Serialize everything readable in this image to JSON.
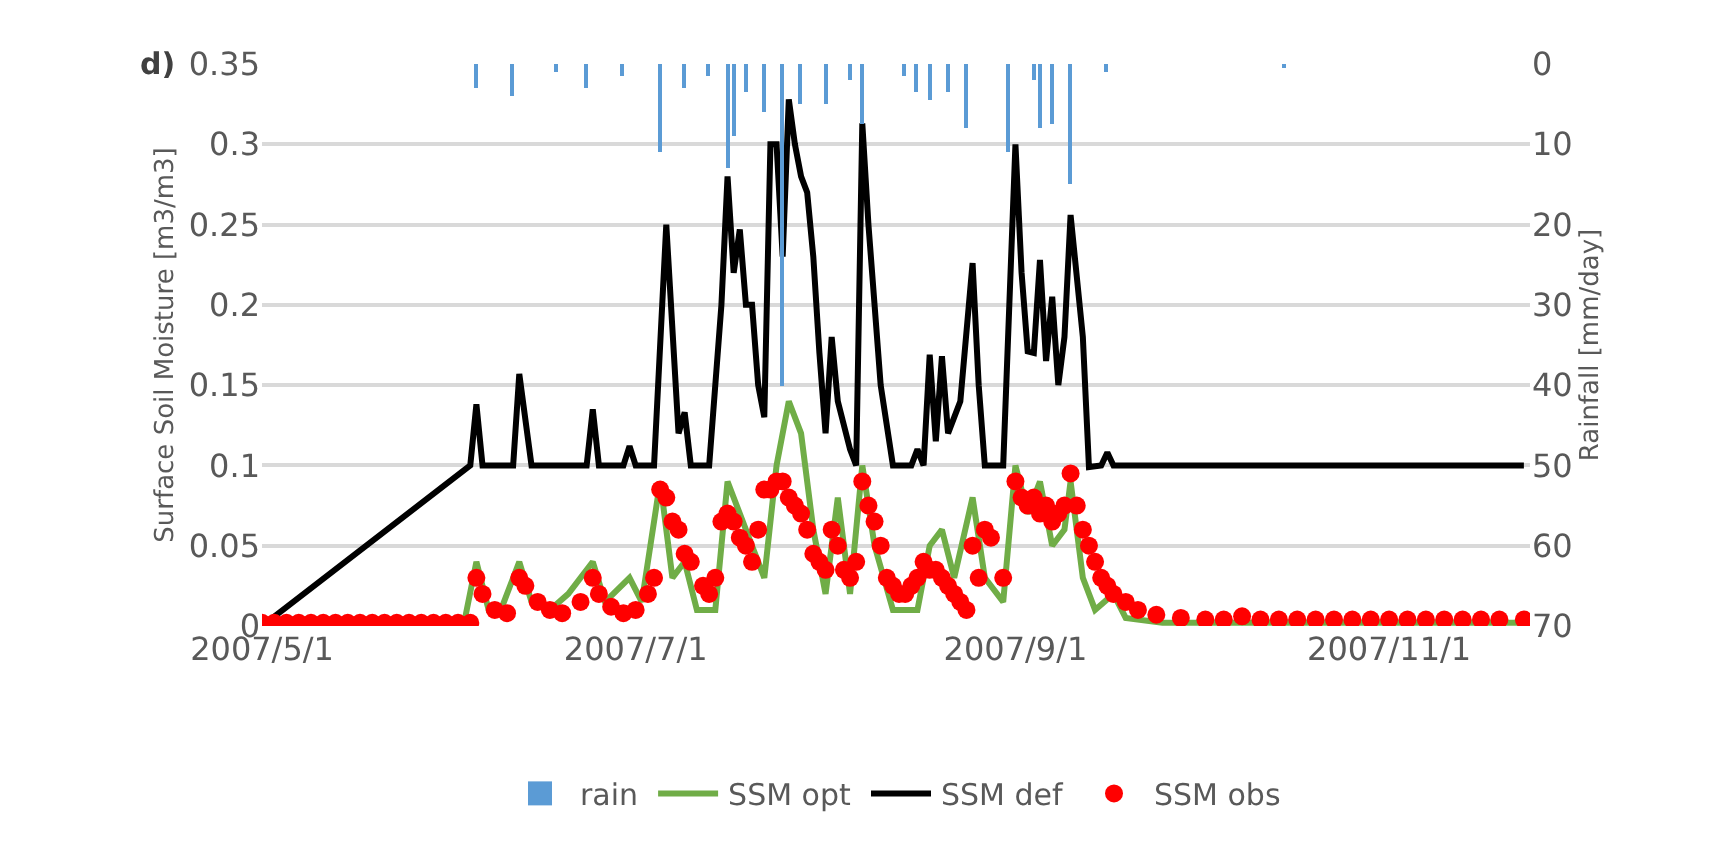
{
  "chart_data": {
    "type": "line",
    "ylabel": "Surface Soil Moisture [m3/m3]",
    "y2label": "Rainfall [mm/day]",
    "annotations": [
      "d)"
    ],
    "xlim": [
      "2007-05-01",
      "2007-11-24"
    ],
    "xticks": [
      {
        "value": "2007-05-01",
        "label": "2007/5/1"
      },
      {
        "value": "2007-07-01",
        "label": "2007/7/1"
      },
      {
        "value": "2007-09-01",
        "label": "2007/9/1"
      },
      {
        "value": "2007-11-01",
        "label": "2007/11/1"
      }
    ],
    "ylim": [
      0,
      0.35
    ],
    "yticks": [
      0,
      0.05,
      0.1,
      0.15,
      0.2,
      0.25,
      0.3,
      0.35
    ],
    "y2lim": [
      70,
      0
    ],
    "y2ticks": [
      0,
      10,
      20,
      30,
      40,
      50,
      60,
      70
    ],
    "grid": "y",
    "legend": "bottom",
    "series": [
      {
        "name": "rain",
        "type": "bar",
        "axis": "y2",
        "color": "#5b9bd5",
        "x": [
          "2007-06-05",
          "2007-06-11",
          "2007-06-18",
          "2007-06-23",
          "2007-06-29",
          "2007-07-05",
          "2007-07-09",
          "2007-07-13",
          "2007-07-16",
          "2007-07-17",
          "2007-07-19",
          "2007-07-22",
          "2007-07-25",
          "2007-07-28",
          "2007-08-01",
          "2007-08-05",
          "2007-08-07",
          "2007-08-14",
          "2007-08-16",
          "2007-08-18",
          "2007-08-21",
          "2007-08-24",
          "2007-08-31",
          "2007-09-04",
          "2007-09-05",
          "2007-09-07",
          "2007-09-10",
          "2007-09-16",
          "2007-10-15"
        ],
        "values": [
          3,
          4,
          1,
          3,
          1.5,
          11,
          3,
          1.5,
          13,
          9,
          3.5,
          6,
          40,
          5,
          5,
          2,
          7.5,
          1.5,
          3.5,
          4.5,
          3.5,
          8,
          11,
          2,
          8,
          7.5,
          15,
          1,
          0.5
        ]
      },
      {
        "name": "SSM opt",
        "marker": "none",
        "color": "#70ad47",
        "x": [
          "2007-05-01",
          "2007-06-03",
          "2007-06-05",
          "2007-06-07",
          "2007-06-09",
          "2007-06-12",
          "2007-06-14",
          "2007-06-17",
          "2007-06-20",
          "2007-06-24",
          "2007-06-26",
          "2007-06-30",
          "2007-07-02",
          "2007-07-05",
          "2007-07-07",
          "2007-07-09",
          "2007-07-11",
          "2007-07-14",
          "2007-07-16",
          "2007-07-18",
          "2007-07-20",
          "2007-07-22",
          "2007-07-24",
          "2007-07-26",
          "2007-07-28",
          "2007-07-30",
          "2007-08-01",
          "2007-08-03",
          "2007-08-05",
          "2007-08-07",
          "2007-08-09",
          "2007-08-12",
          "2007-08-16",
          "2007-08-18",
          "2007-08-20",
          "2007-08-22",
          "2007-08-25",
          "2007-08-27",
          "2007-08-30",
          "2007-09-01",
          "2007-09-03",
          "2007-09-05",
          "2007-09-07",
          "2007-09-09",
          "2007-09-10",
          "2007-09-12",
          "2007-09-14",
          "2007-09-17",
          "2007-09-19",
          "2007-09-25",
          "2007-11-23"
        ],
        "values": [
          0.002,
          0.002,
          0.04,
          0.01,
          0.01,
          0.04,
          0.015,
          0.01,
          0.02,
          0.04,
          0.015,
          0.03,
          0.015,
          0.09,
          0.03,
          0.04,
          0.01,
          0.01,
          0.09,
          0.07,
          0.05,
          0.03,
          0.1,
          0.14,
          0.12,
          0.06,
          0.02,
          0.08,
          0.02,
          0.1,
          0.05,
          0.01,
          0.01,
          0.05,
          0.06,
          0.03,
          0.08,
          0.03,
          0.015,
          0.1,
          0.07,
          0.09,
          0.05,
          0.06,
          0.09,
          0.03,
          0.01,
          0.02,
          0.005,
          0.002,
          0.002
        ]
      },
      {
        "name": "SSM def",
        "marker": "none",
        "color": "#000000",
        "x": [
          "2007-05-01",
          "2007-06-04",
          "2007-06-05",
          "2007-06-06",
          "2007-06-11",
          "2007-06-12",
          "2007-06-14",
          "2007-06-23",
          "2007-06-24",
          "2007-06-25",
          "2007-06-29",
          "2007-06-30",
          "2007-07-01",
          "2007-07-04",
          "2007-07-06",
          "2007-07-08",
          "2007-07-09",
          "2007-07-10",
          "2007-07-13",
          "2007-07-15",
          "2007-07-16",
          "2007-07-17",
          "2007-07-18",
          "2007-07-19",
          "2007-07-20",
          "2007-07-21",
          "2007-07-22",
          "2007-07-23",
          "2007-07-24",
          "2007-07-25",
          "2007-07-26",
          "2007-07-27",
          "2007-07-28",
          "2007-07-29",
          "2007-07-30",
          "2007-07-31",
          "2007-08-01",
          "2007-08-02",
          "2007-08-03",
          "2007-08-05",
          "2007-08-06",
          "2007-08-07",
          "2007-08-08",
          "2007-08-10",
          "2007-08-12",
          "2007-08-15",
          "2007-08-16",
          "2007-08-17",
          "2007-08-18",
          "2007-08-19",
          "2007-08-20",
          "2007-08-21",
          "2007-08-23",
          "2007-08-25",
          "2007-08-26",
          "2007-08-27",
          "2007-08-30",
          "2007-09-01",
          "2007-09-02",
          "2007-09-03",
          "2007-09-04",
          "2007-09-05",
          "2007-09-06",
          "2007-09-07",
          "2007-09-08",
          "2007-09-09",
          "2007-09-10",
          "2007-09-12",
          "2007-09-13",
          "2007-09-15",
          "2007-09-16",
          "2007-09-17",
          "2007-11-23"
        ],
        "values": [
          0,
          0.1,
          0.138,
          0.1,
          0.1,
          0.157,
          0.1,
          0.1,
          0.135,
          0.1,
          0.1,
          0.112,
          0.1,
          0.1,
          0.25,
          0.12,
          0.133,
          0.1,
          0.1,
          0.2,
          0.28,
          0.22,
          0.247,
          0.2,
          0.2,
          0.15,
          0.13,
          0.3,
          0.3,
          0.23,
          0.328,
          0.3,
          0.28,
          0.27,
          0.23,
          0.17,
          0.12,
          0.18,
          0.14,
          0.11,
          0.1,
          0.313,
          0.25,
          0.15,
          0.1,
          0.1,
          0.11,
          0.1,
          0.169,
          0.115,
          0.168,
          0.12,
          0.14,
          0.226,
          0.15,
          0.1,
          0.1,
          0.3,
          0.22,
          0.171,
          0.17,
          0.228,
          0.165,
          0.205,
          0.15,
          0.18,
          0.256,
          0.18,
          0.099,
          0.1,
          0.108,
          0.1,
          0.1
        ]
      },
      {
        "name": "SSM obs",
        "type": "scatter",
        "marker": "circle",
        "color": "#ff0000",
        "x": [
          "2007-05-01",
          "2007-05-03",
          "2007-05-05",
          "2007-05-07",
          "2007-05-09",
          "2007-05-11",
          "2007-05-13",
          "2007-05-15",
          "2007-05-17",
          "2007-05-19",
          "2007-05-21",
          "2007-05-23",
          "2007-05-25",
          "2007-05-27",
          "2007-05-29",
          "2007-05-31",
          "2007-06-02",
          "2007-06-04",
          "2007-06-05",
          "2007-06-06",
          "2007-06-08",
          "2007-06-10",
          "2007-06-12",
          "2007-06-13",
          "2007-06-15",
          "2007-06-17",
          "2007-06-19",
          "2007-06-22",
          "2007-06-24",
          "2007-06-25",
          "2007-06-27",
          "2007-06-29",
          "2007-07-01",
          "2007-07-03",
          "2007-07-04",
          "2007-07-05",
          "2007-07-06",
          "2007-07-07",
          "2007-07-08",
          "2007-07-09",
          "2007-07-10",
          "2007-07-12",
          "2007-07-13",
          "2007-07-14",
          "2007-07-15",
          "2007-07-16",
          "2007-07-17",
          "2007-07-18",
          "2007-07-19",
          "2007-07-20",
          "2007-07-21",
          "2007-07-22",
          "2007-07-23",
          "2007-07-24",
          "2007-07-25",
          "2007-07-26",
          "2007-07-27",
          "2007-07-28",
          "2007-07-29",
          "2007-07-30",
          "2007-07-31",
          "2007-08-01",
          "2007-08-02",
          "2007-08-03",
          "2007-08-04",
          "2007-08-05",
          "2007-08-06",
          "2007-08-07",
          "2007-08-08",
          "2007-08-09",
          "2007-08-10",
          "2007-08-11",
          "2007-08-12",
          "2007-08-13",
          "2007-08-14",
          "2007-08-15",
          "2007-08-16",
          "2007-08-17",
          "2007-08-18",
          "2007-08-19",
          "2007-08-20",
          "2007-08-21",
          "2007-08-22",
          "2007-08-23",
          "2007-08-24",
          "2007-08-25",
          "2007-08-26",
          "2007-08-27",
          "2007-08-28",
          "2007-08-30",
          "2007-09-01",
          "2007-09-02",
          "2007-09-03",
          "2007-09-04",
          "2007-09-05",
          "2007-09-06",
          "2007-09-07",
          "2007-09-08",
          "2007-09-09",
          "2007-09-10",
          "2007-09-11",
          "2007-09-12",
          "2007-09-13",
          "2007-09-14",
          "2007-09-15",
          "2007-09-16",
          "2007-09-17",
          "2007-09-19",
          "2007-09-21",
          "2007-09-24",
          "2007-09-28",
          "2007-10-02",
          "2007-10-05",
          "2007-10-08",
          "2007-10-11",
          "2007-10-14",
          "2007-10-17",
          "2007-10-20",
          "2007-10-23",
          "2007-10-26",
          "2007-10-29",
          "2007-11-01",
          "2007-11-04",
          "2007-11-07",
          "2007-11-10",
          "2007-11-13",
          "2007-11-16",
          "2007-11-19",
          "2007-11-23"
        ],
        "values": [
          0.002,
          0.002,
          0.002,
          0.002,
          0.002,
          0.002,
          0.002,
          0.002,
          0.002,
          0.002,
          0.002,
          0.002,
          0.002,
          0.002,
          0.002,
          0.002,
          0.002,
          0.002,
          0.03,
          0.02,
          0.01,
          0.008,
          0.03,
          0.025,
          0.015,
          0.01,
          0.008,
          0.015,
          0.03,
          0.02,
          0.012,
          0.008,
          0.01,
          0.02,
          0.03,
          0.085,
          0.08,
          0.065,
          0.06,
          0.045,
          0.04,
          0.025,
          0.02,
          0.03,
          0.065,
          0.07,
          0.065,
          0.055,
          0.05,
          0.04,
          0.06,
          0.085,
          0.085,
          0.09,
          0.09,
          0.08,
          0.075,
          0.07,
          0.06,
          0.045,
          0.04,
          0.035,
          0.06,
          0.05,
          0.035,
          0.03,
          0.04,
          0.09,
          0.075,
          0.065,
          0.05,
          0.03,
          0.025,
          0.02,
          0.02,
          0.025,
          0.03,
          0.04,
          0.035,
          0.035,
          0.03,
          0.025,
          0.02,
          0.015,
          0.01,
          0.05,
          0.03,
          0.06,
          0.055,
          0.03,
          0.09,
          0.08,
          0.075,
          0.08,
          0.07,
          0.075,
          0.065,
          0.07,
          0.075,
          0.095,
          0.075,
          0.06,
          0.05,
          0.04,
          0.03,
          0.025,
          0.02,
          0.015,
          0.01,
          0.007,
          0.005,
          0.004,
          0.004,
          0.006,
          0.004,
          0.004,
          0.004,
          0.004,
          0.004,
          0.004,
          0.004,
          0.004,
          0.004,
          0.004,
          0.004,
          0.004,
          0.004,
          0.004,
          0.004
        ]
      }
    ]
  }
}
